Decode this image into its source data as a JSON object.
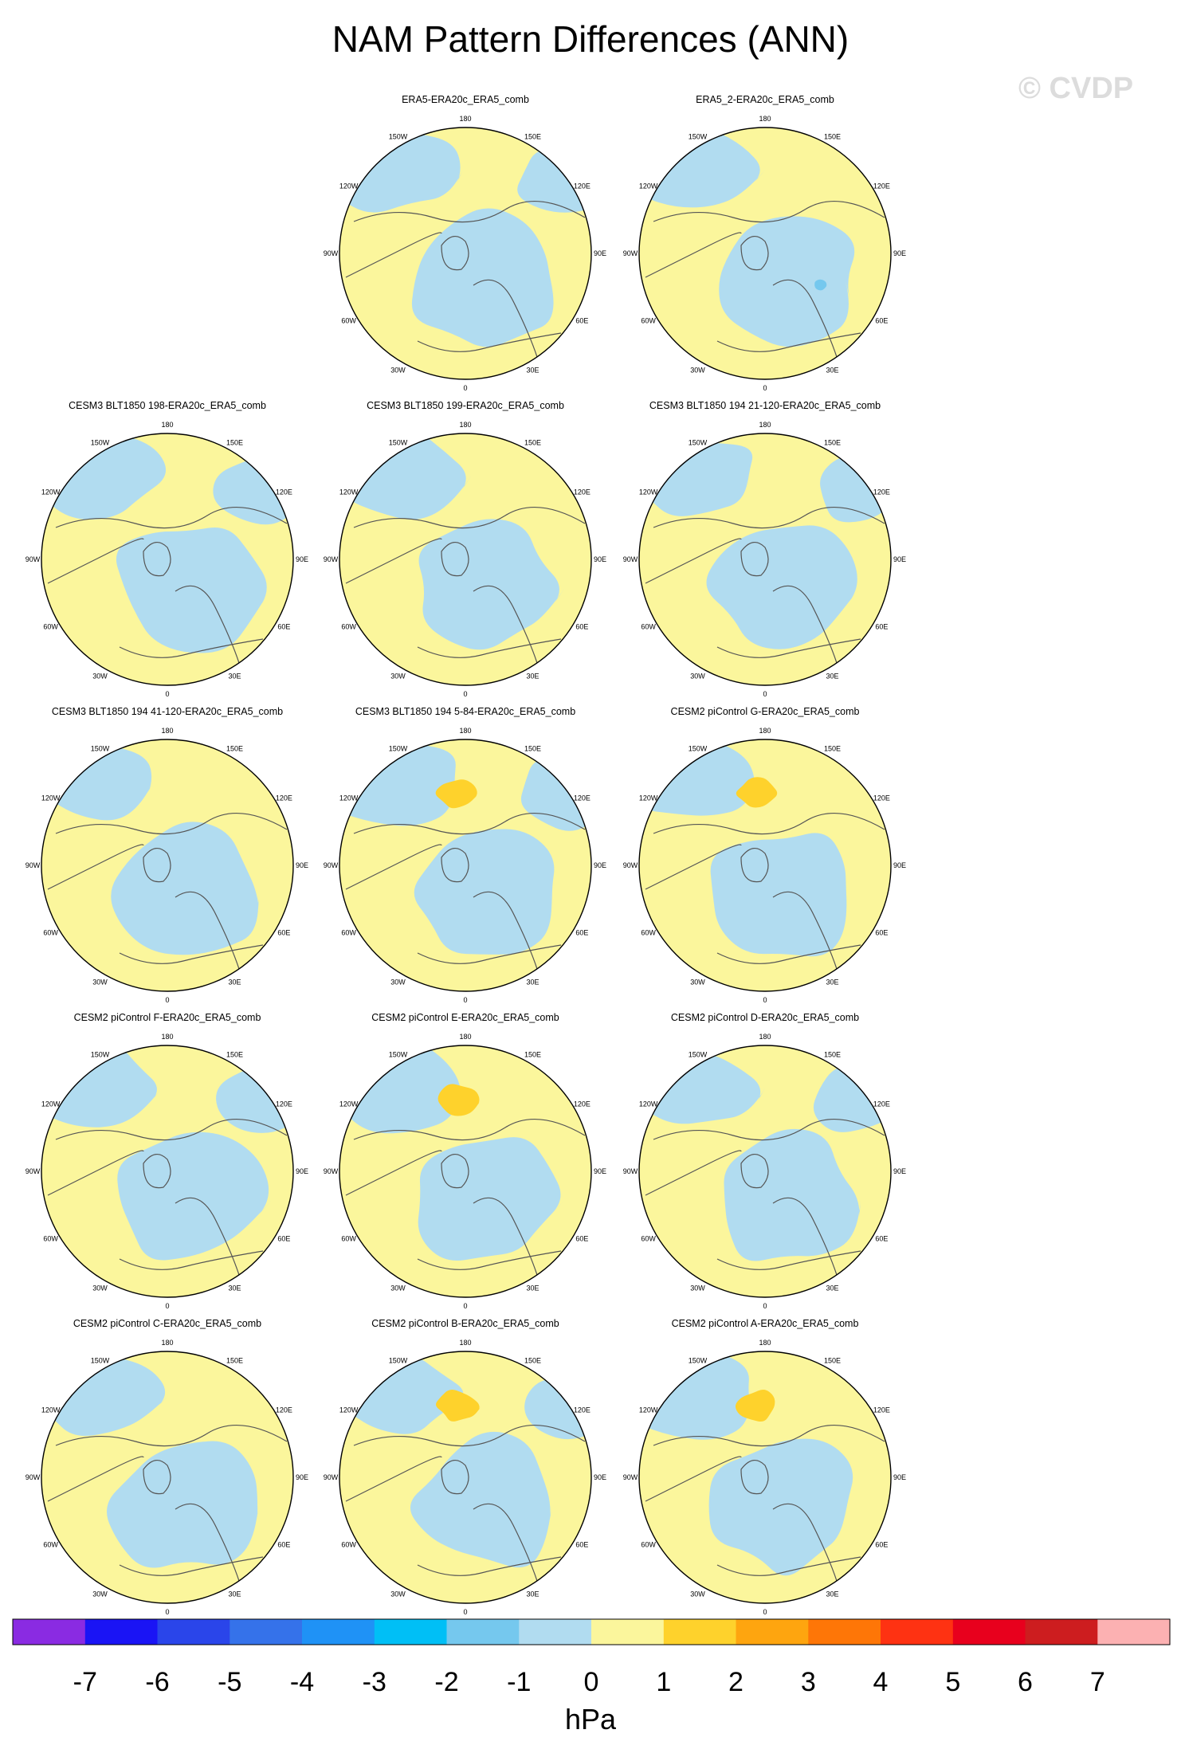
{
  "title": "NAM Pattern Differences (ANN)",
  "watermark": "© CVDP",
  "chart_data": {
    "type": "heatmap",
    "projection": "north-polar-stereographic",
    "variable_unit": "hPa",
    "longitude_labels": [
      "180",
      "150E",
      "120E",
      "90E",
      "60E",
      "30E",
      "0",
      "30W",
      "60W",
      "90W",
      "120W",
      "150W"
    ],
    "colorbar": {
      "ticks": [
        "-7",
        "-6",
        "-5",
        "-4",
        "-3",
        "-2",
        "-1",
        "0",
        "1",
        "2",
        "3",
        "4",
        "5",
        "6",
        "7"
      ],
      "colors": [
        "#8a2be2",
        "#1a14f5",
        "#2a45ea",
        "#3572ea",
        "#1f92f6",
        "#00bff6",
        "#75c8ee",
        "#b1dcf0",
        "#fbf69c",
        "#fed22c",
        "#fea50f",
        "#fe7607",
        "#fe3212",
        "#e8001d",
        "#cd1d1f",
        "#fcb1b2"
      ],
      "unit": "hPa"
    },
    "panels": [
      {
        "title": "ERA5-ERA20c_ERA5_comb",
        "row": 0,
        "col": 1,
        "max_positive_bin": "0 to 1",
        "min_negative_bin": "-1 to 0"
      },
      {
        "title": "ERA5_2-ERA20c_ERA5_comb",
        "row": 0,
        "col": 2,
        "max_positive_bin": "0 to 1",
        "min_negative_bin": "-2 to -1"
      },
      {
        "title": "CESM3 BLT1850 198-ERA20c_ERA5_comb",
        "row": 1,
        "col": 0,
        "max_positive_bin": "0 to 1",
        "min_negative_bin": "-1 to 0"
      },
      {
        "title": "CESM3 BLT1850 199-ERA20c_ERA5_comb",
        "row": 1,
        "col": 1,
        "max_positive_bin": "0 to 1",
        "min_negative_bin": "-1 to 0"
      },
      {
        "title": "CESM3 BLT1850 194 21-120-ERA20c_ERA5_comb",
        "row": 1,
        "col": 2,
        "max_positive_bin": "0 to 1",
        "min_negative_bin": "-1 to 0"
      },
      {
        "title": "CESM3 BLT1850 194 41-120-ERA20c_ERA5_comb",
        "row": 2,
        "col": 0,
        "max_positive_bin": "0 to 1",
        "min_negative_bin": "-1 to 0"
      },
      {
        "title": "CESM3 BLT1850 194 5-84-ERA20c_ERA5_comb",
        "row": 2,
        "col": 1,
        "max_positive_bin": "1 to 2",
        "min_negative_bin": "-1 to 0"
      },
      {
        "title": "CESM2 piControl G-ERA20c_ERA5_comb",
        "row": 2,
        "col": 2,
        "max_positive_bin": "1 to 2",
        "min_negative_bin": "-1 to 0"
      },
      {
        "title": "CESM2 piControl F-ERA20c_ERA5_comb",
        "row": 3,
        "col": 0,
        "max_positive_bin": "0 to 1",
        "min_negative_bin": "-1 to 0"
      },
      {
        "title": "CESM2 piControl E-ERA20c_ERA5_comb",
        "row": 3,
        "col": 1,
        "max_positive_bin": "1 to 2",
        "min_negative_bin": "-1 to 0"
      },
      {
        "title": "CESM2 piControl D-ERA20c_ERA5_comb",
        "row": 3,
        "col": 2,
        "max_positive_bin": "0 to 1",
        "min_negative_bin": "-1 to 0"
      },
      {
        "title": "CESM2 piControl C-ERA20c_ERA5_comb",
        "row": 4,
        "col": 0,
        "max_positive_bin": "0 to 1",
        "min_negative_bin": "-1 to 0"
      },
      {
        "title": "CESM2 piControl B-ERA20c_ERA5_comb",
        "row": 4,
        "col": 1,
        "max_positive_bin": "1 to 2",
        "min_negative_bin": "-1 to 0"
      },
      {
        "title": "CESM2 piControl A-ERA20c_ERA5_comb",
        "row": 4,
        "col": 2,
        "max_positive_bin": "1 to 2",
        "min_negative_bin": "-1 to 0"
      }
    ]
  }
}
